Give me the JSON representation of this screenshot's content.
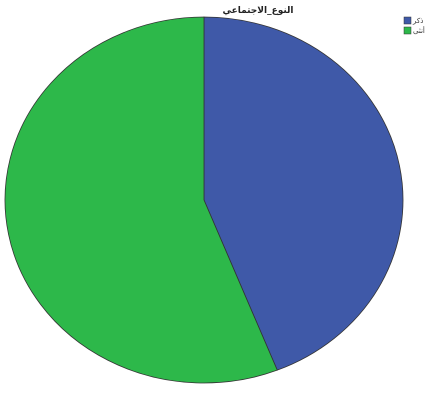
{
  "chart_data": {
    "type": "pie",
    "title": "النوع_الاجتماعي",
    "start_angle_deg": 0,
    "direction": "clockwise",
    "slices": [
      {
        "label": "ذكر",
        "value": 44,
        "color": "#3f59a8"
      },
      {
        "label": "أنثى",
        "value": 56,
        "color": "#2db84a"
      }
    ],
    "legend_position": "top-right"
  }
}
